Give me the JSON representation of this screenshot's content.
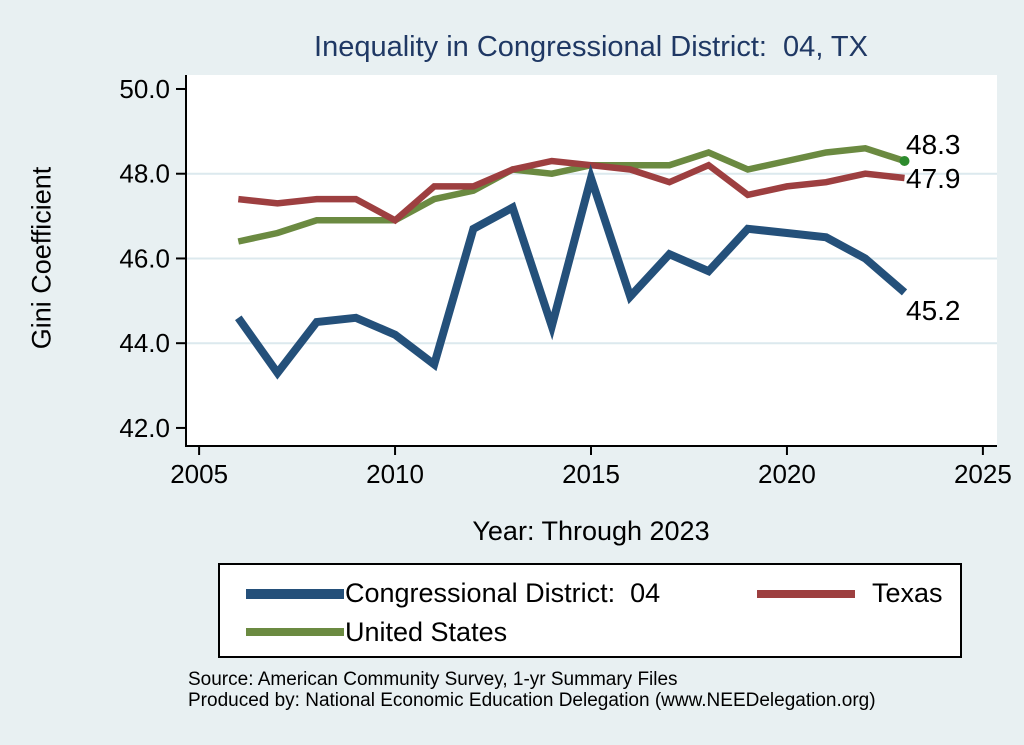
{
  "title": "Inequality in Congressional District:  04, TX",
  "axes": {
    "y_title": "Gini Coefficient",
    "x_title": "Year: Through 2023"
  },
  "chart_data": {
    "type": "line",
    "x": [
      2006,
      2007,
      2008,
      2009,
      2010,
      2011,
      2012,
      2013,
      2014,
      2015,
      2016,
      2017,
      2018,
      2019,
      2020,
      2021,
      2022,
      2023
    ],
    "series": [
      {
        "name": "Congressional District:  04",
        "color": "#24507a",
        "line_width": 8,
        "values": [
          44.6,
          43.3,
          44.5,
          44.6,
          44.2,
          43.5,
          46.7,
          47.2,
          44.4,
          47.9,
          45.1,
          46.1,
          45.7,
          46.7,
          46.6,
          46.5,
          46.0,
          45.2
        ],
        "end_label": "45.2"
      },
      {
        "name": "Texas",
        "color": "#9d3f40",
        "line_width": 6.5,
        "values": [
          47.4,
          47.3,
          47.4,
          47.4,
          46.9,
          47.7,
          47.7,
          48.1,
          48.3,
          48.2,
          48.1,
          47.8,
          48.2,
          47.5,
          47.7,
          47.8,
          48.0,
          47.9
        ],
        "end_label": "47.9"
      },
      {
        "name": "United States",
        "color": "#6b8a41",
        "line_width": 6.5,
        "values": [
          46.4,
          46.6,
          46.9,
          46.9,
          46.9,
          47.4,
          47.6,
          48.1,
          48.0,
          48.2,
          48.2,
          48.2,
          48.5,
          48.1,
          48.3,
          48.5,
          48.6,
          48.3
        ],
        "end_label": "48.3",
        "end_marker_color": "#2d8b2d"
      }
    ],
    "yticks": [
      {
        "value": 42.0,
        "label": "42.0"
      },
      {
        "value": 44.0,
        "label": "44.0"
      },
      {
        "value": 46.0,
        "label": "46.0"
      },
      {
        "value": 48.0,
        "label": "48.0"
      },
      {
        "value": 50.0,
        "label": "50.0"
      }
    ],
    "xticks": [
      {
        "value": 2005,
        "label": "2005"
      },
      {
        "value": 2010,
        "label": "2010"
      },
      {
        "value": 2015,
        "label": "2015"
      },
      {
        "value": 2020,
        "label": "2020"
      },
      {
        "value": 2025,
        "label": "2025"
      }
    ],
    "grid_values": [
      44.0,
      46.0,
      48.0
    ],
    "x_range": [
      2004.64,
      2025.36
    ],
    "y_range": [
      41.55,
      50.33
    ],
    "grid": "horizontal",
    "legend_position": "bottom",
    "xlabel": "Year: Through 2023",
    "ylabel": "Gini Coefficient",
    "title": "Inequality in Congressional District:  04, TX"
  },
  "source": {
    "line1": "Source: American Community Survey, 1-yr Summary Files",
    "line2": "Produced by: National Economic Education Delegation (www.NEEDelegation.org)"
  },
  "colors": {
    "background": "#e8f0f2",
    "plot_background": "#ffffff",
    "grid": "#dce9ee",
    "axis": "#000000",
    "title": "#1f3864"
  }
}
